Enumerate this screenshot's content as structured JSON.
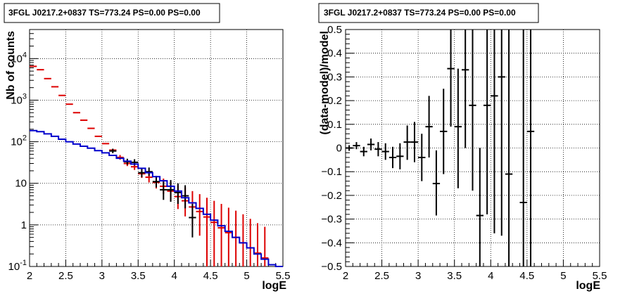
{
  "chart_data": [
    {
      "type": "scatter",
      "title": "3FGL J0217.2+0837 TS=773.24 PS=0.00 PS=0.00",
      "xlabel": "logE",
      "ylabel": "Nb of counts",
      "xlim": [
        2,
        5.5
      ],
      "ylim": [
        0.1,
        50000
      ],
      "ylog": true,
      "grid": true,
      "xticks": [
        "2",
        "2.5",
        "3",
        "3.5",
        "4",
        "4.5",
        "5",
        "5.5"
      ],
      "yticks": [
        {
          "v": 0.1,
          "base": "10",
          "exp": "-1"
        },
        {
          "v": 1,
          "base": "1",
          "exp": ""
        },
        {
          "v": 10,
          "base": "10",
          "exp": ""
        },
        {
          "v": 100,
          "base": "10",
          "exp": "2"
        },
        {
          "v": 1000,
          "base": "10",
          "exp": "3"
        },
        {
          "v": 10000,
          "base": "10",
          "exp": "4"
        }
      ],
      "bin_width": 0.1,
      "series": [
        {
          "role": "model-total",
          "color": "#dd0000",
          "points": [
            {
              "x": 2.05,
              "y": 6500,
              "lo": 6500,
              "hi": 6500
            },
            {
              "x": 2.15,
              "y": 5400,
              "lo": 5400,
              "hi": 5400
            },
            {
              "x": 2.25,
              "y": 3300,
              "lo": 3300,
              "hi": 3300
            },
            {
              "x": 2.35,
              "y": 2100,
              "lo": 2100,
              "hi": 2100
            },
            {
              "x": 2.45,
              "y": 1300,
              "lo": 1300,
              "hi": 1300
            },
            {
              "x": 2.55,
              "y": 800,
              "lo": 800,
              "hi": 800
            },
            {
              "x": 2.65,
              "y": 500,
              "lo": 500,
              "hi": 500
            },
            {
              "x": 2.75,
              "y": 330,
              "lo": 330,
              "hi": 330
            },
            {
              "x": 2.85,
              "y": 210,
              "lo": 210,
              "hi": 210
            },
            {
              "x": 2.95,
              "y": 135,
              "lo": 135,
              "hi": 135
            },
            {
              "x": 3.05,
              "y": 90,
              "lo": 90,
              "hi": 90
            },
            {
              "x": 3.15,
              "y": 63,
              "lo": 63,
              "hi": 63
            },
            {
              "x": 3.25,
              "y": 42,
              "lo": 37,
              "hi": 48
            },
            {
              "x": 3.35,
              "y": 30,
              "lo": 26,
              "hi": 35
            },
            {
              "x": 3.45,
              "y": 25,
              "lo": 21,
              "hi": 30
            },
            {
              "x": 3.55,
              "y": 17,
              "lo": 13.5,
              "hi": 22
            },
            {
              "x": 3.65,
              "y": 14,
              "lo": 10.5,
              "hi": 18.5
            },
            {
              "x": 3.75,
              "y": 10.5,
              "lo": 7.5,
              "hi": 15
            },
            {
              "x": 3.85,
              "y": 8.5,
              "lo": 5.5,
              "hi": 13
            },
            {
              "x": 3.95,
              "y": 6.5,
              "lo": 3.8,
              "hi": 11
            },
            {
              "x": 4.05,
              "y": 4.8,
              "lo": 2.4,
              "hi": 9
            },
            {
              "x": 4.15,
              "y": 3.8,
              "lo": 1.6,
              "hi": 8
            },
            {
              "x": 4.25,
              "y": 2.7,
              "lo": 0.9,
              "hi": 6.5
            },
            {
              "x": 4.35,
              "y": 2.1,
              "lo": 0.55,
              "hi": 5.5
            },
            {
              "x": 4.45,
              "y": 1.55,
              "lo": 0.1,
              "hi": 4.5
            },
            {
              "x": 4.55,
              "y": 1.15,
              "lo": 0.1,
              "hi": 3.8
            },
            {
              "x": 4.65,
              "y": 0.85,
              "lo": 0.1,
              "hi": 3.2
            },
            {
              "x": 4.75,
              "y": 0.65,
              "lo": 0.1,
              "hi": 2.6
            },
            {
              "x": 4.85,
              "y": 0.5,
              "lo": 0.1,
              "hi": 2.2
            },
            {
              "x": 4.95,
              "y": 0.37,
              "lo": 0.1,
              "hi": 1.8
            },
            {
              "x": 5.05,
              "y": 0.28,
              "lo": 0.1,
              "hi": 1.4
            },
            {
              "x": 5.15,
              "y": 0.21,
              "lo": 0.1,
              "hi": 1.1
            },
            {
              "x": 5.25,
              "y": 0.16,
              "lo": 0.1,
              "hi": 0.9
            }
          ]
        },
        {
          "role": "data",
          "color": "#000000",
          "points": [
            {
              "x": 3.15,
              "y": 60,
              "lo": 53,
              "hi": 68
            },
            {
              "x": 3.35,
              "y": 33,
              "lo": 28,
              "hi": 39
            },
            {
              "x": 3.45,
              "y": 32,
              "lo": 27,
              "hi": 38
            },
            {
              "x": 3.55,
              "y": 18,
              "lo": 14,
              "hi": 23
            },
            {
              "x": 3.65,
              "y": 19,
              "lo": 15,
              "hi": 24
            },
            {
              "x": 3.75,
              "y": 11,
              "lo": 8,
              "hi": 15
            },
            {
              "x": 3.85,
              "y": 7,
              "lo": 4,
              "hi": 11
            },
            {
              "x": 3.95,
              "y": 7,
              "lo": 3.6,
              "hi": 12
            },
            {
              "x": 4.05,
              "y": 6,
              "lo": 3.2,
              "hi": 10
            },
            {
              "x": 4.15,
              "y": 5,
              "lo": 2.5,
              "hi": 9
            },
            {
              "x": 4.25,
              "y": 1.5,
              "lo": 0.5,
              "hi": 3.2
            }
          ]
        },
        {
          "role": "model-step",
          "color": "#0000cc",
          "edges": [
            2.0,
            2.1,
            2.2,
            2.3,
            2.4,
            2.5,
            2.6,
            2.7,
            2.8,
            2.9,
            3.0,
            3.1,
            3.2,
            3.3,
            3.4,
            3.5,
            3.6,
            3.7,
            3.8,
            3.9,
            4.0,
            4.1,
            4.2,
            4.3,
            4.4,
            4.5,
            4.6,
            4.7,
            4.8,
            4.9,
            5.0,
            5.1,
            5.2,
            5.3,
            5.4,
            5.5
          ],
          "values": [
            185,
            175,
            155,
            135,
            115,
            100,
            88,
            78,
            70,
            61,
            54,
            47,
            40,
            34,
            29,
            23,
            18,
            14.5,
            11.5,
            8.5,
            6.5,
            4.5,
            3.4,
            2.5,
            1.8,
            1.3,
            0.95,
            0.7,
            0.5,
            0.37,
            0.28,
            0.2,
            0.15,
            0.11,
            0.1
          ]
        }
      ]
    },
    {
      "type": "scatter",
      "title": "3FGL J0217.2+0837 TS=773.24 PS=0.00 PS=0.00",
      "xlabel": "logE",
      "ylabel": "(data-model)/model",
      "xlim": [
        2,
        5.5
      ],
      "ylim": [
        -0.5,
        0.5
      ],
      "grid": true,
      "xticks": [
        "2",
        "2.5",
        "3",
        "3.5",
        "4",
        "4.5",
        "5",
        "5.5"
      ],
      "yticks": [
        "−0.5",
        "−0.4",
        "−0.3",
        "−0.2",
        "−0.1",
        "0",
        "0.1",
        "0.2",
        "0.3",
        "0.4",
        "0.5"
      ],
      "bin_width": 0.1,
      "series": [
        {
          "role": "residual",
          "color": "#000000",
          "points": [
            {
              "x": 2.05,
              "y": 0.0,
              "lo": -0.012,
              "hi": 0.012
            },
            {
              "x": 2.15,
              "y": 0.01,
              "lo": -0.005,
              "hi": 0.025
            },
            {
              "x": 2.25,
              "y": -0.015,
              "lo": -0.035,
              "hi": 0.005
            },
            {
              "x": 2.35,
              "y": 0.015,
              "lo": -0.01,
              "hi": 0.04
            },
            {
              "x": 2.45,
              "y": -0.005,
              "lo": -0.035,
              "hi": 0.025
            },
            {
              "x": 2.55,
              "y": -0.015,
              "lo": -0.05,
              "hi": 0.02
            },
            {
              "x": 2.65,
              "y": -0.04,
              "lo": -0.085,
              "hi": 0.005
            },
            {
              "x": 2.75,
              "y": -0.035,
              "lo": -0.09,
              "hi": 0.02
            },
            {
              "x": 2.85,
              "y": 0.025,
              "lo": -0.05,
              "hi": 0.095
            },
            {
              "x": 2.95,
              "y": 0.025,
              "lo": -0.06,
              "hi": 0.11
            },
            {
              "x": 3.05,
              "y": -0.04,
              "lo": -0.14,
              "hi": 0.06
            },
            {
              "x": 3.15,
              "y": 0.09,
              "lo": -0.04,
              "hi": 0.22
            },
            {
              "x": 3.25,
              "y": -0.15,
              "lo": -0.285,
              "hi": -0.01
            },
            {
              "x": 3.35,
              "y": 0.07,
              "lo": -0.11,
              "hi": 0.25
            },
            {
              "x": 3.45,
              "y": 0.335,
              "lo": 0.09,
              "hi": 0.5
            },
            {
              "x": 3.55,
              "y": 0.09,
              "lo": -0.17,
              "hi": 0.335
            },
            {
              "x": 3.65,
              "y": 0.33,
              "lo": 0.0,
              "hi": 0.5
            },
            {
              "x": 3.75,
              "y": 0.18,
              "lo": -0.18,
              "hi": 0.5
            },
            {
              "x": 3.85,
              "y": -0.285,
              "lo": -0.5,
              "hi": 0.0
            },
            {
              "x": 3.95,
              "y": 0.18,
              "lo": -0.28,
              "hi": 0.5
            },
            {
              "x": 4.05,
              "y": 0.22,
              "lo": -0.36,
              "hi": 0.5
            },
            {
              "x": 4.15,
              "y": 0.3,
              "lo": -0.37,
              "hi": 0.5
            },
            {
              "x": 4.25,
              "y": -0.11,
              "lo": -0.5,
              "hi": 0.5
            },
            {
              "x": 4.45,
              "y": -0.23,
              "lo": -0.5,
              "hi": 0.5
            },
            {
              "x": 4.55,
              "y": 0.07,
              "lo": -0.5,
              "hi": 0.5
            }
          ]
        }
      ]
    }
  ]
}
